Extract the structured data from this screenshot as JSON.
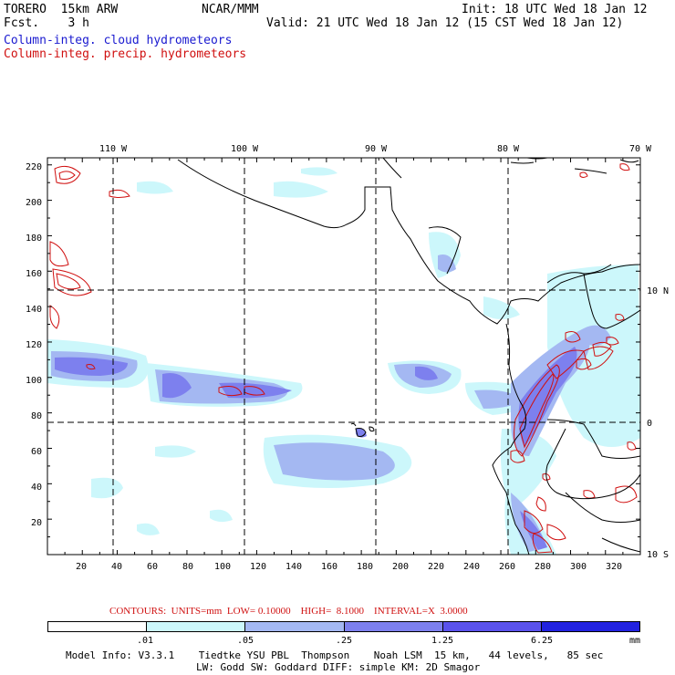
{
  "header": {
    "model": "TORERO  15km ARW",
    "fcst": "Fcst.    3 h",
    "org": "NCAR/MMM",
    "init": "Init: 18 UTC Wed 18 Jan 12",
    "valid": "Valid: 21 UTC Wed 18 Jan 12 (15 CST Wed 18 Jan 12)",
    "field_cloud": "Column-integ. cloud hydrometeors",
    "field_precip": "Column-integ. precip. hydrometeors"
  },
  "map": {
    "lon_labels": [
      "110 W",
      "100 W",
      "90 W",
      "80 W",
      "70 W"
    ],
    "lat_labels": [
      "10 N",
      "0",
      "10 S"
    ],
    "y_ticks": [
      "220",
      "200",
      "180",
      "160",
      "140",
      "120",
      "100",
      "80",
      "60",
      "40",
      "20"
    ],
    "x_ticks": [
      "20",
      "40",
      "60",
      "80",
      "100",
      "120",
      "140",
      "160",
      "180",
      "200",
      "220",
      "240",
      "260",
      "280",
      "300",
      "320"
    ]
  },
  "legend": {
    "contours": "CONTOURS:  UNITS=mm  LOW= 0.10000    HIGH=  8.1000    INTERVAL=X  3.0000",
    "levels": [
      ".01",
      ".05",
      ".25",
      "1.25",
      "6.25",
      "mm"
    ],
    "colors": [
      "#ffffff",
      "#ccf7fb",
      "#a4b8f2",
      "#7d80ee",
      "#5a52ec",
      "#2222e0"
    ]
  },
  "footer": {
    "line1": "Model Info: V3.3.1    Tiedtke YSU PBL  Thompson    Noah LSM  15 km,   44 levels,   85 sec",
    "line2": "LW: Godd SW: Goddard DIFF: simple KM: 2D Smagor"
  }
}
